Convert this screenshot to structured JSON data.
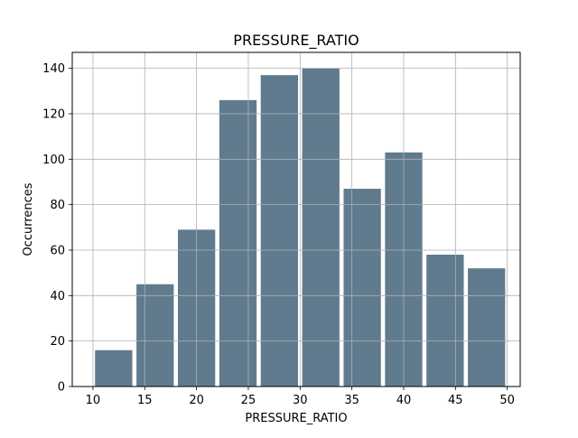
{
  "chart_data": {
    "type": "bar",
    "title": "PRESSURE_RATIO",
    "xlabel": "PRESSURE_RATIO",
    "ylabel": "Occurrences",
    "bin_edges": [
      10,
      14,
      18,
      22,
      26,
      30,
      34,
      38,
      42,
      46,
      50
    ],
    "values": [
      16,
      45,
      69,
      126,
      137,
      140,
      87,
      103,
      58,
      52
    ],
    "xlim": [
      8.0,
      51.25
    ],
    "ylim": [
      0,
      147
    ],
    "xticks": [
      10,
      15,
      20,
      25,
      30,
      35,
      40,
      45,
      50
    ],
    "yticks": [
      0,
      20,
      40,
      60,
      80,
      100,
      120,
      140
    ],
    "grid": true,
    "bar_color": "#607b8e"
  }
}
